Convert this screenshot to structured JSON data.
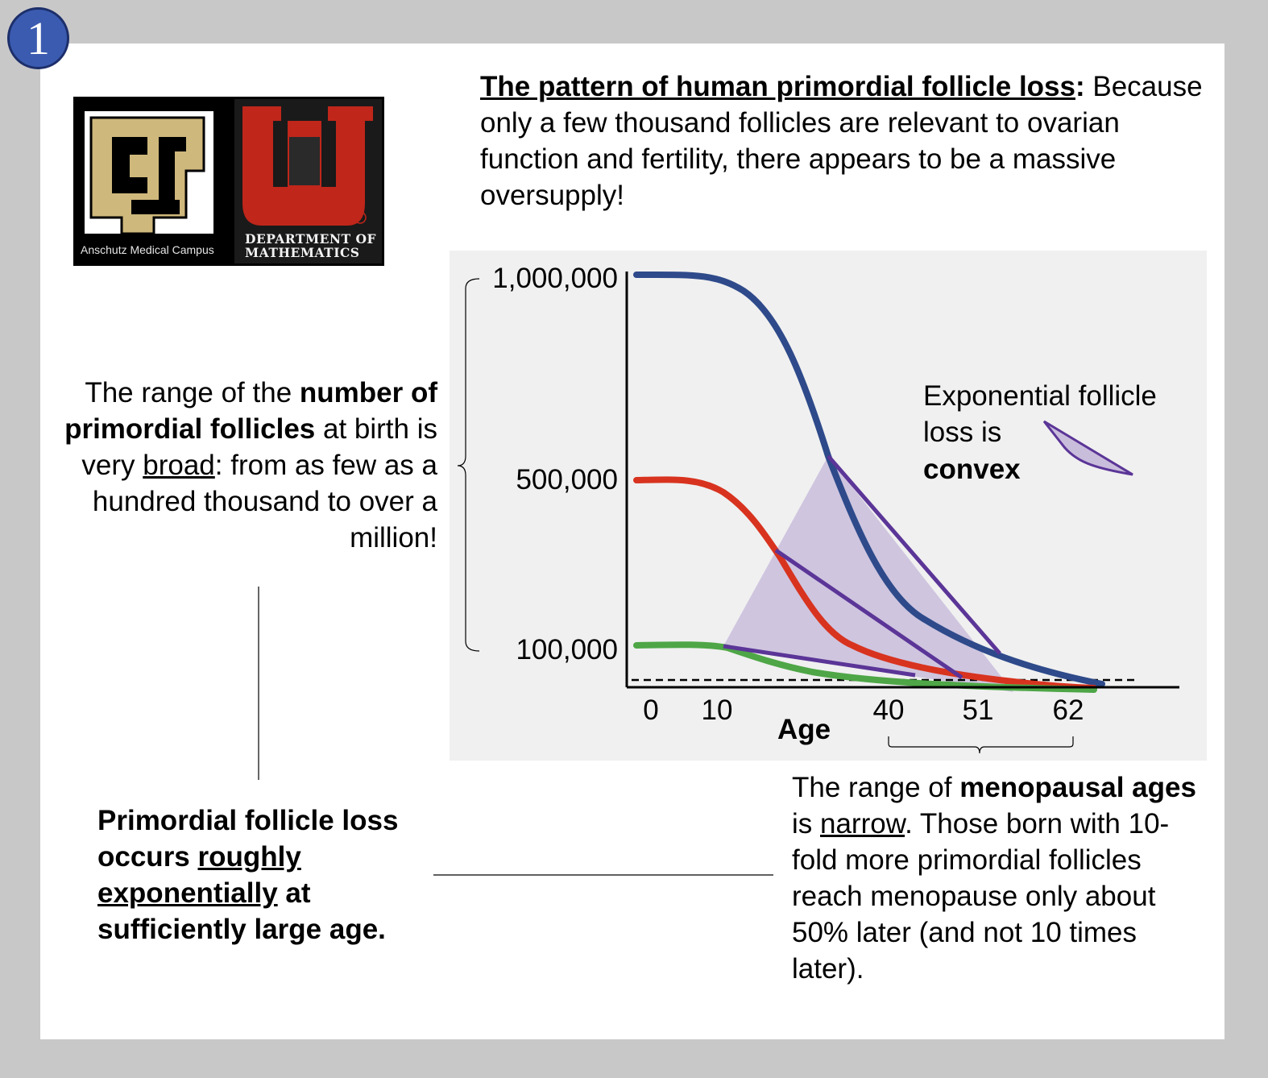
{
  "slide_number": "1",
  "logo": {
    "left_caption": "Anschutz Medical Campus",
    "right_caption_line1": "DEPARTMENT OF",
    "right_caption_line2": "MATHEMATICS",
    "colors": {
      "cu_gold": "#cfb87c",
      "utah_red": "#c0261a"
    }
  },
  "header": {
    "title": "The pattern of human primordial follicle loss",
    "title_colon": ":",
    "body": "Because only a few thousand follicles are relevant to ovarian function and fertility, there appears to be a massive oversupply!"
  },
  "left_annotation": {
    "p1": "The range of the ",
    "b1": "number of primordial follicles",
    "p2": " at birth is very ",
    "u1": "broad",
    "p3": ": from as few as a hundred thousand to over a million!"
  },
  "bottom_left": {
    "p1": "Primordial follicle loss occurs ",
    "u1": "roughly exponentially",
    "p2": " at sufficiently large age."
  },
  "bottom_right": {
    "p1": "The range of ",
    "b1": "menopausal ages",
    "p2": " is ",
    "u1": "narrow",
    "p3": ". Those born with 10-fold more primordial follicles reach menopause only about 50% later (and not 10 times later)."
  },
  "chart_data": {
    "type": "line",
    "xlabel": "Age",
    "x_ticks": [
      "0",
      "10",
      "40",
      "51",
      "62"
    ],
    "y_ticks": [
      "1,000,000",
      "500,000",
      "100,000"
    ],
    "convex_note": {
      "line1": "Exponential follicle",
      "line2": "loss is",
      "line3": "convex"
    },
    "series": [
      {
        "color": "#2e4a8a",
        "start": 1000000,
        "reaches_threshold_at": 62
      },
      {
        "color": "#d8331f",
        "start": 500000,
        "reaches_threshold_at": 51
      },
      {
        "color": "#4ea646",
        "start": 100000,
        "reaches_threshold_at": 40
      }
    ],
    "chord_color": "#5b3597",
    "shade_color": "#c9bddc",
    "threshold_line": "dashed"
  }
}
